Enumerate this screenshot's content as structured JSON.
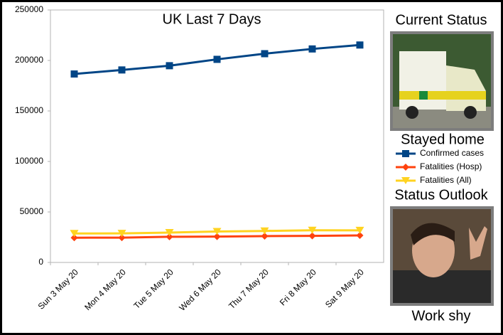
{
  "chart_data": {
    "type": "line",
    "title": "UK Last 7 Days",
    "categories": [
      "Sun 3 May 20",
      "Mon 4 May 20",
      "Tue 5 May 20",
      "Wed 6 May 20",
      "Thu 7 May 20",
      "Fri 8 May 20",
      "Sat 9 May 20"
    ],
    "series": [
      {
        "name": "Confirmed cases",
        "color": "#004586",
        "marker": "square",
        "values": [
          186600,
          190600,
          194800,
          201100,
          206700,
          211400,
          215300
        ]
      },
      {
        "name": "Fatalities (Hosp)",
        "color": "#ff420e",
        "marker": "diamond",
        "values": [
          24500,
          24600,
          25400,
          25600,
          26100,
          26300,
          26800
        ]
      },
      {
        "name": "Fatalities (All)",
        "color": "#ffd320",
        "marker": "triangle",
        "values": [
          28700,
          28800,
          29600,
          30600,
          31200,
          31900,
          31800
        ]
      }
    ],
    "ylim": [
      0,
      250000
    ],
    "yticks": [
      0,
      50000,
      100000,
      150000,
      200000,
      250000
    ],
    "grid": false
  },
  "panel": {
    "current_heading": "Current Status",
    "current_caption": "Stayed home",
    "outlook_heading": "Status Outlook",
    "outlook_caption": "Work shy"
  }
}
